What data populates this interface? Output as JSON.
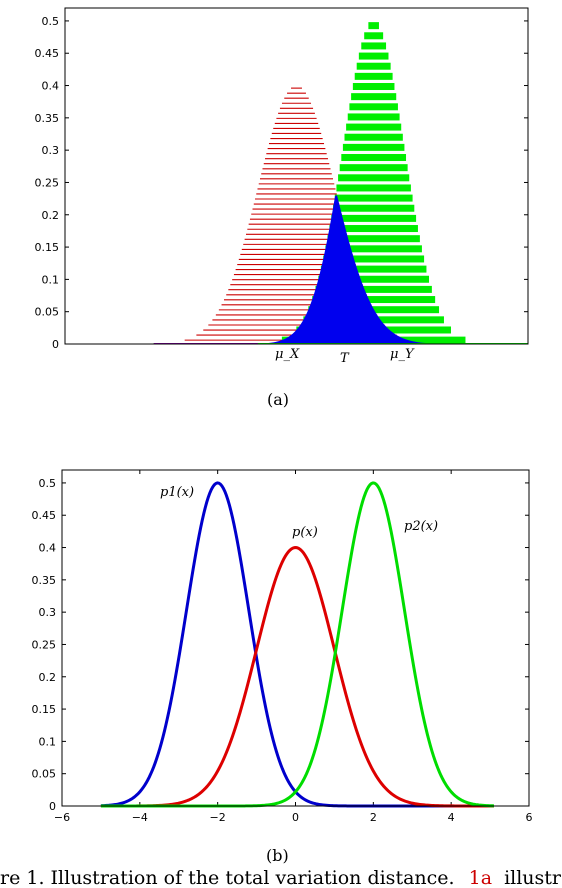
{
  "chart_data": [
    {
      "type": "area",
      "panel_label": "(a)",
      "ylim": [
        0,
        0.52
      ],
      "yticks": [
        "0",
        "0.05",
        "0.1",
        "0.15",
        "0.2",
        "0.25",
        "0.3",
        "0.35",
        "0.4",
        "0.45",
        "0.5"
      ],
      "x_annotations": [
        "μ_X",
        "T",
        "μ_Y"
      ],
      "xlim": [
        -6,
        6
      ],
      "marker_x": [
        0,
        1,
        2
      ],
      "series": [
        {
          "mean": 0,
          "std": 1,
          "peak": 0.4,
          "color": "#cc0000",
          "fill": "thin-hatch"
        },
        {
          "mean": 2,
          "std": 0.8,
          "peak": 0.5,
          "color": "#00ee00",
          "fill": "thick-hatch"
        },
        {
          "color": "#0000ee",
          "fill": "solid",
          "description": "overlap min(pX,pY)"
        }
      ]
    },
    {
      "type": "line",
      "panel_label": "(b)",
      "xlim": [
        -6,
        6
      ],
      "ylim": [
        0,
        0.52
      ],
      "xticks": [
        "−6",
        "−4",
        "−2",
        "0",
        "2",
        "4",
        "6"
      ],
      "yticks": [
        "0",
        "0.05",
        "0.1",
        "0.15",
        "0.2",
        "0.25",
        "0.3",
        "0.35",
        "0.4",
        "0.45",
        "0.5"
      ],
      "series": [
        {
          "name": "p1(x)",
          "mean": -2,
          "std": 0.8,
          "peak": 0.5,
          "color": "#0000cc"
        },
        {
          "name": "p(x)",
          "mean": 0,
          "std": 1,
          "peak": 0.4,
          "color": "#dd0000"
        },
        {
          "name": "p2(x)",
          "mean": 2,
          "std": 0.8,
          "peak": 0.5,
          "color": "#00dd00"
        }
      ]
    }
  ],
  "caption": "re 1. Illustration of the total variation distance.",
  "caption_ref": "1a",
  "caption_tail": "illustr"
}
